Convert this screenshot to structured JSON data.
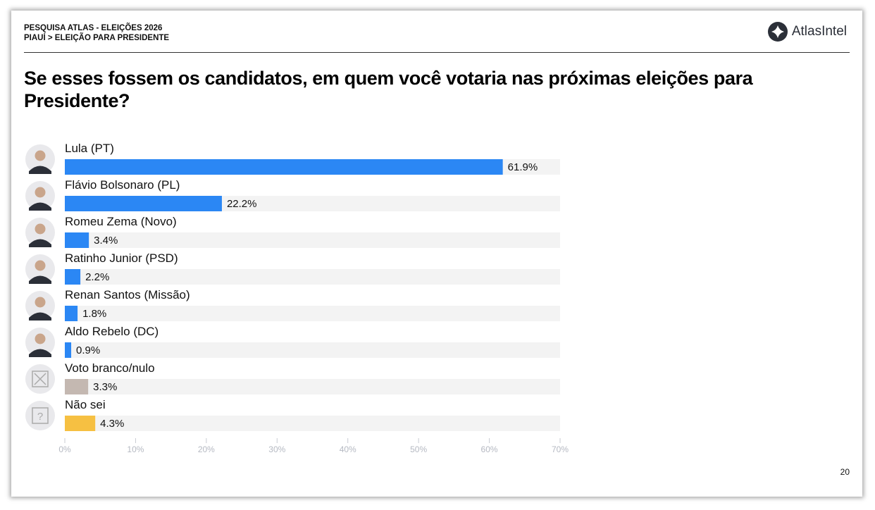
{
  "header": {
    "line1": "PESQUISA ATLAS - ELEIÇÕES 2026",
    "line2": "PIAUÍ > ELEIÇÃO PARA PRESIDENTE"
  },
  "logo": {
    "text": "AtlasIntel"
  },
  "page_number": "20",
  "chart_data": {
    "type": "bar",
    "orientation": "horizontal",
    "title": "Se esses fossem os candidatos, em quem você votaria nas próximas eleições para Presidente?",
    "categories": [
      "Lula (PT)",
      "Flávio Bolsonaro (PL)",
      "Romeu Zema (Novo)",
      "Ratinho Junior (PSD)",
      "Renan Santos (Missão)",
      "Aldo Rebelo (DC)",
      "Voto branco/nulo",
      "Não sei"
    ],
    "values": [
      61.9,
      22.2,
      3.4,
      2.2,
      1.8,
      0.9,
      3.3,
      4.3
    ],
    "data_labels": [
      "61.9%",
      "22.2%",
      "3.4%",
      "2.2%",
      "1.8%",
      "0.9%",
      "3.3%",
      "4.3%"
    ],
    "colors": [
      "#2b87f4",
      "#2b87f4",
      "#2b87f4",
      "#2b87f4",
      "#2b87f4",
      "#2b87f4",
      "#c4b8b1",
      "#f6c042"
    ],
    "icons": [
      "candidate-photo",
      "candidate-photo",
      "candidate-photo",
      "candidate-photo",
      "candidate-photo",
      "candidate-photo",
      "x-box-icon",
      "question-box-icon"
    ],
    "xlim": [
      0,
      70
    ],
    "xticks": [
      "0%",
      "10%",
      "20%",
      "30%",
      "40%",
      "50%",
      "60%",
      "70%"
    ],
    "track_color": "#f3f3f3",
    "grid": false
  }
}
